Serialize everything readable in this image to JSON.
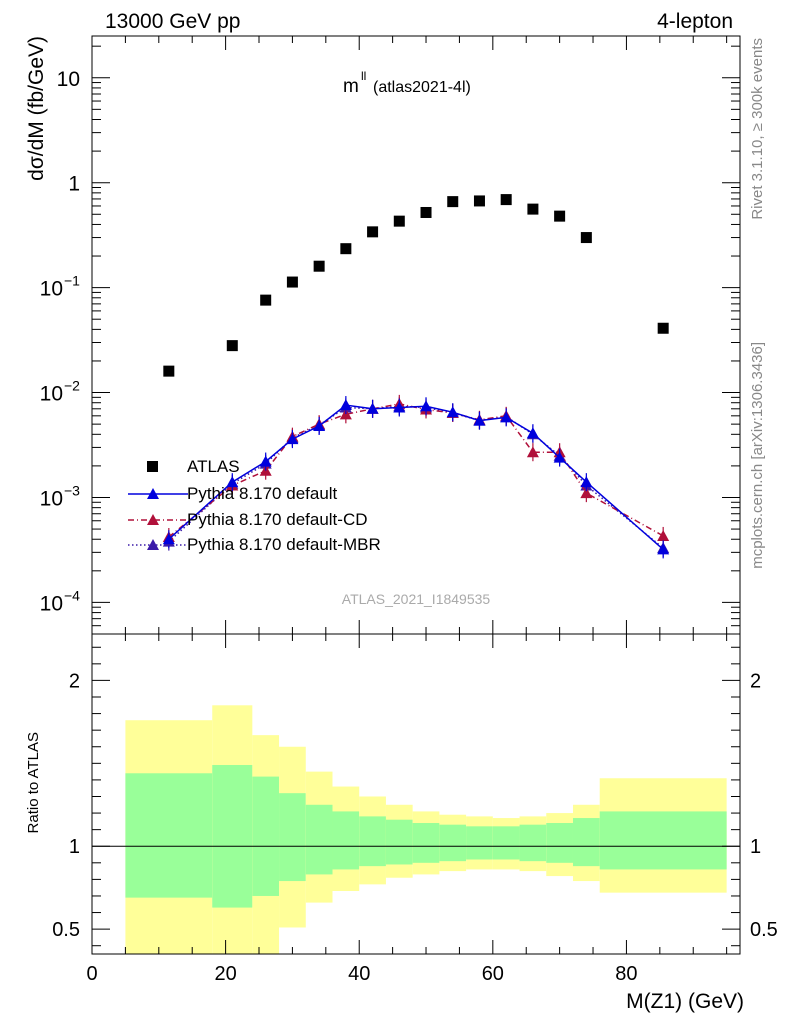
{
  "header": {
    "energy": "13000 GeV pp",
    "process": "4-lepton"
  },
  "plot_label": {
    "main": "m",
    "superscript": "ll",
    "analysis": "(atlas2021-4l)"
  },
  "side_text": {
    "rivet": "Rivet 3.1.10, ≥ 300k events",
    "mcplots": "mcplots.cern.ch [arXiv:1306.3436]"
  },
  "watermark": "ATLAS_2021_I1849535",
  "colors": {
    "data": "#000000",
    "default": "#0000dd",
    "cd": "#b0103a",
    "mbr": "#3a1aa8",
    "band_inner": "#99ff99",
    "band_outer": "#ffff99"
  },
  "chart_data": [
    {
      "type": "scatter",
      "title": "",
      "xlabel": "M(Z1) (GeV)",
      "ylabel": "dσ/dM (fb/GeV)",
      "xlim": [
        0,
        97
      ],
      "ylim": [
        5e-05,
        25
      ],
      "yscale": "log",
      "ytick_labels": [
        {
          "value": 0.0001,
          "base": "10",
          "exp": "−4"
        },
        {
          "value": 0.001,
          "base": "10",
          "exp": "−3"
        },
        {
          "value": 0.01,
          "base": "10",
          "exp": "−2"
        },
        {
          "value": 0.1,
          "base": "10",
          "exp": "−1"
        },
        {
          "value": 1,
          "base": "1",
          "exp": ""
        },
        {
          "value": 10,
          "base": "10",
          "exp": ""
        }
      ],
      "legend_position": "bottom-left",
      "series": [
        {
          "name": "ATLAS",
          "style": "square",
          "points": [
            [
              11.5,
              0.016
            ],
            [
              21,
              0.028
            ],
            [
              26,
              0.076
            ],
            [
              30,
              0.113
            ],
            [
              34,
              0.16
            ],
            [
              38,
              0.235
            ],
            [
              42,
              0.34
            ],
            [
              46,
              0.43
            ],
            [
              50,
              0.52
            ],
            [
              54,
              0.66
            ],
            [
              58,
              0.67
            ],
            [
              62,
              0.69
            ],
            [
              66,
              0.56
            ],
            [
              70,
              0.48
            ],
            [
              74,
              0.3
            ],
            [
              85.5,
              0.041
            ]
          ]
        },
        {
          "name": "Pythia 8.170 default",
          "style": "solid",
          "points": [
            [
              11.5,
              0.0004
            ],
            [
              21,
              0.0014
            ],
            [
              26,
              0.0022
            ],
            [
              30,
              0.0036
            ],
            [
              34,
              0.0048
            ],
            [
              38,
              0.0076
            ],
            [
              42,
              0.007
            ],
            [
              46,
              0.0072
            ],
            [
              50,
              0.0074
            ],
            [
              54,
              0.0065
            ],
            [
              58,
              0.0054
            ],
            [
              62,
              0.0058
            ],
            [
              66,
              0.0041
            ],
            [
              70,
              0.0024
            ],
            [
              74,
              0.0014
            ],
            [
              85.5,
              0.00032
            ]
          ]
        },
        {
          "name": "Pythia 8.170 default-CD",
          "style": "dashdot",
          "points": [
            [
              11.5,
              0.00042
            ],
            [
              21,
              0.0013
            ],
            [
              26,
              0.0018
            ],
            [
              30,
              0.0038
            ],
            [
              34,
              0.005
            ],
            [
              38,
              0.0062
            ],
            [
              42,
              0.007
            ],
            [
              46,
              0.0078
            ],
            [
              50,
              0.0069
            ],
            [
              54,
              0.0064
            ],
            [
              58,
              0.0055
            ],
            [
              62,
              0.006
            ],
            [
              66,
              0.0027
            ],
            [
              70,
              0.0027
            ],
            [
              74,
              0.0011
            ],
            [
              85.5,
              0.00043
            ]
          ]
        },
        {
          "name": "Pythia 8.170 default-MBR",
          "style": "dotted",
          "points": [
            [
              11.5,
              0.00038
            ],
            [
              21,
              0.00135
            ],
            [
              26,
              0.0021
            ],
            [
              30,
              0.0037
            ],
            [
              34,
              0.0049
            ],
            [
              38,
              0.0072
            ],
            [
              42,
              0.007
            ],
            [
              46,
              0.0074
            ],
            [
              50,
              0.0072
            ],
            [
              54,
              0.0064
            ],
            [
              58,
              0.0054
            ],
            [
              62,
              0.0059
            ],
            [
              66,
              0.004
            ],
            [
              70,
              0.0025
            ],
            [
              74,
              0.0013
            ],
            [
              85.5,
              0.00033
            ]
          ]
        }
      ]
    },
    {
      "type": "area",
      "title": "",
      "xlabel": "M(Z1) (GeV)",
      "ylabel": "Ratio to ATLAS",
      "xlim": [
        0,
        97
      ],
      "ylim": [
        0.35,
        2.28
      ],
      "xticks": [
        0,
        20,
        40,
        60,
        80
      ],
      "yticks": [
        0.5,
        1,
        2
      ],
      "reference_line": 1,
      "bands": [
        {
          "x0": 5,
          "x1": 18,
          "inner": [
            0.69,
            1.44
          ],
          "outer": [
            0.0,
            1.76
          ]
        },
        {
          "x0": 18,
          "x1": 24,
          "inner": [
            0.63,
            1.49
          ],
          "outer": [
            0.0,
            1.85
          ]
        },
        {
          "x0": 24,
          "x1": 28,
          "inner": [
            0.7,
            1.42
          ],
          "outer": [
            0.0,
            1.67
          ]
        },
        {
          "x0": 28,
          "x1": 32,
          "inner": [
            0.79,
            1.32
          ],
          "outer": [
            0.51,
            1.6
          ]
        },
        {
          "x0": 32,
          "x1": 36,
          "inner": [
            0.83,
            1.25
          ],
          "outer": [
            0.66,
            1.45
          ]
        },
        {
          "x0": 36,
          "x1": 40,
          "inner": [
            0.86,
            1.21
          ],
          "outer": [
            0.73,
            1.36
          ]
        },
        {
          "x0": 40,
          "x1": 44,
          "inner": [
            0.88,
            1.18
          ],
          "outer": [
            0.77,
            1.3
          ]
        },
        {
          "x0": 44,
          "x1": 48,
          "inner": [
            0.89,
            1.16
          ],
          "outer": [
            0.81,
            1.25
          ]
        },
        {
          "x0": 48,
          "x1": 52,
          "inner": [
            0.9,
            1.14
          ],
          "outer": [
            0.83,
            1.21
          ]
        },
        {
          "x0": 52,
          "x1": 56,
          "inner": [
            0.91,
            1.13
          ],
          "outer": [
            0.85,
            1.19
          ]
        },
        {
          "x0": 56,
          "x1": 60,
          "inner": [
            0.92,
            1.12
          ],
          "outer": [
            0.86,
            1.18
          ]
        },
        {
          "x0": 60,
          "x1": 64,
          "inner": [
            0.92,
            1.12
          ],
          "outer": [
            0.86,
            1.17
          ]
        },
        {
          "x0": 64,
          "x1": 68,
          "inner": [
            0.91,
            1.13
          ],
          "outer": [
            0.85,
            1.18
          ]
        },
        {
          "x0": 68,
          "x1": 72,
          "inner": [
            0.9,
            1.14
          ],
          "outer": [
            0.82,
            1.2
          ]
        },
        {
          "x0": 72,
          "x1": 76,
          "inner": [
            0.88,
            1.17
          ],
          "outer": [
            0.79,
            1.25
          ]
        },
        {
          "x0": 76,
          "x1": 95,
          "inner": [
            0.86,
            1.21
          ],
          "outer": [
            0.72,
            1.41
          ]
        }
      ]
    }
  ]
}
